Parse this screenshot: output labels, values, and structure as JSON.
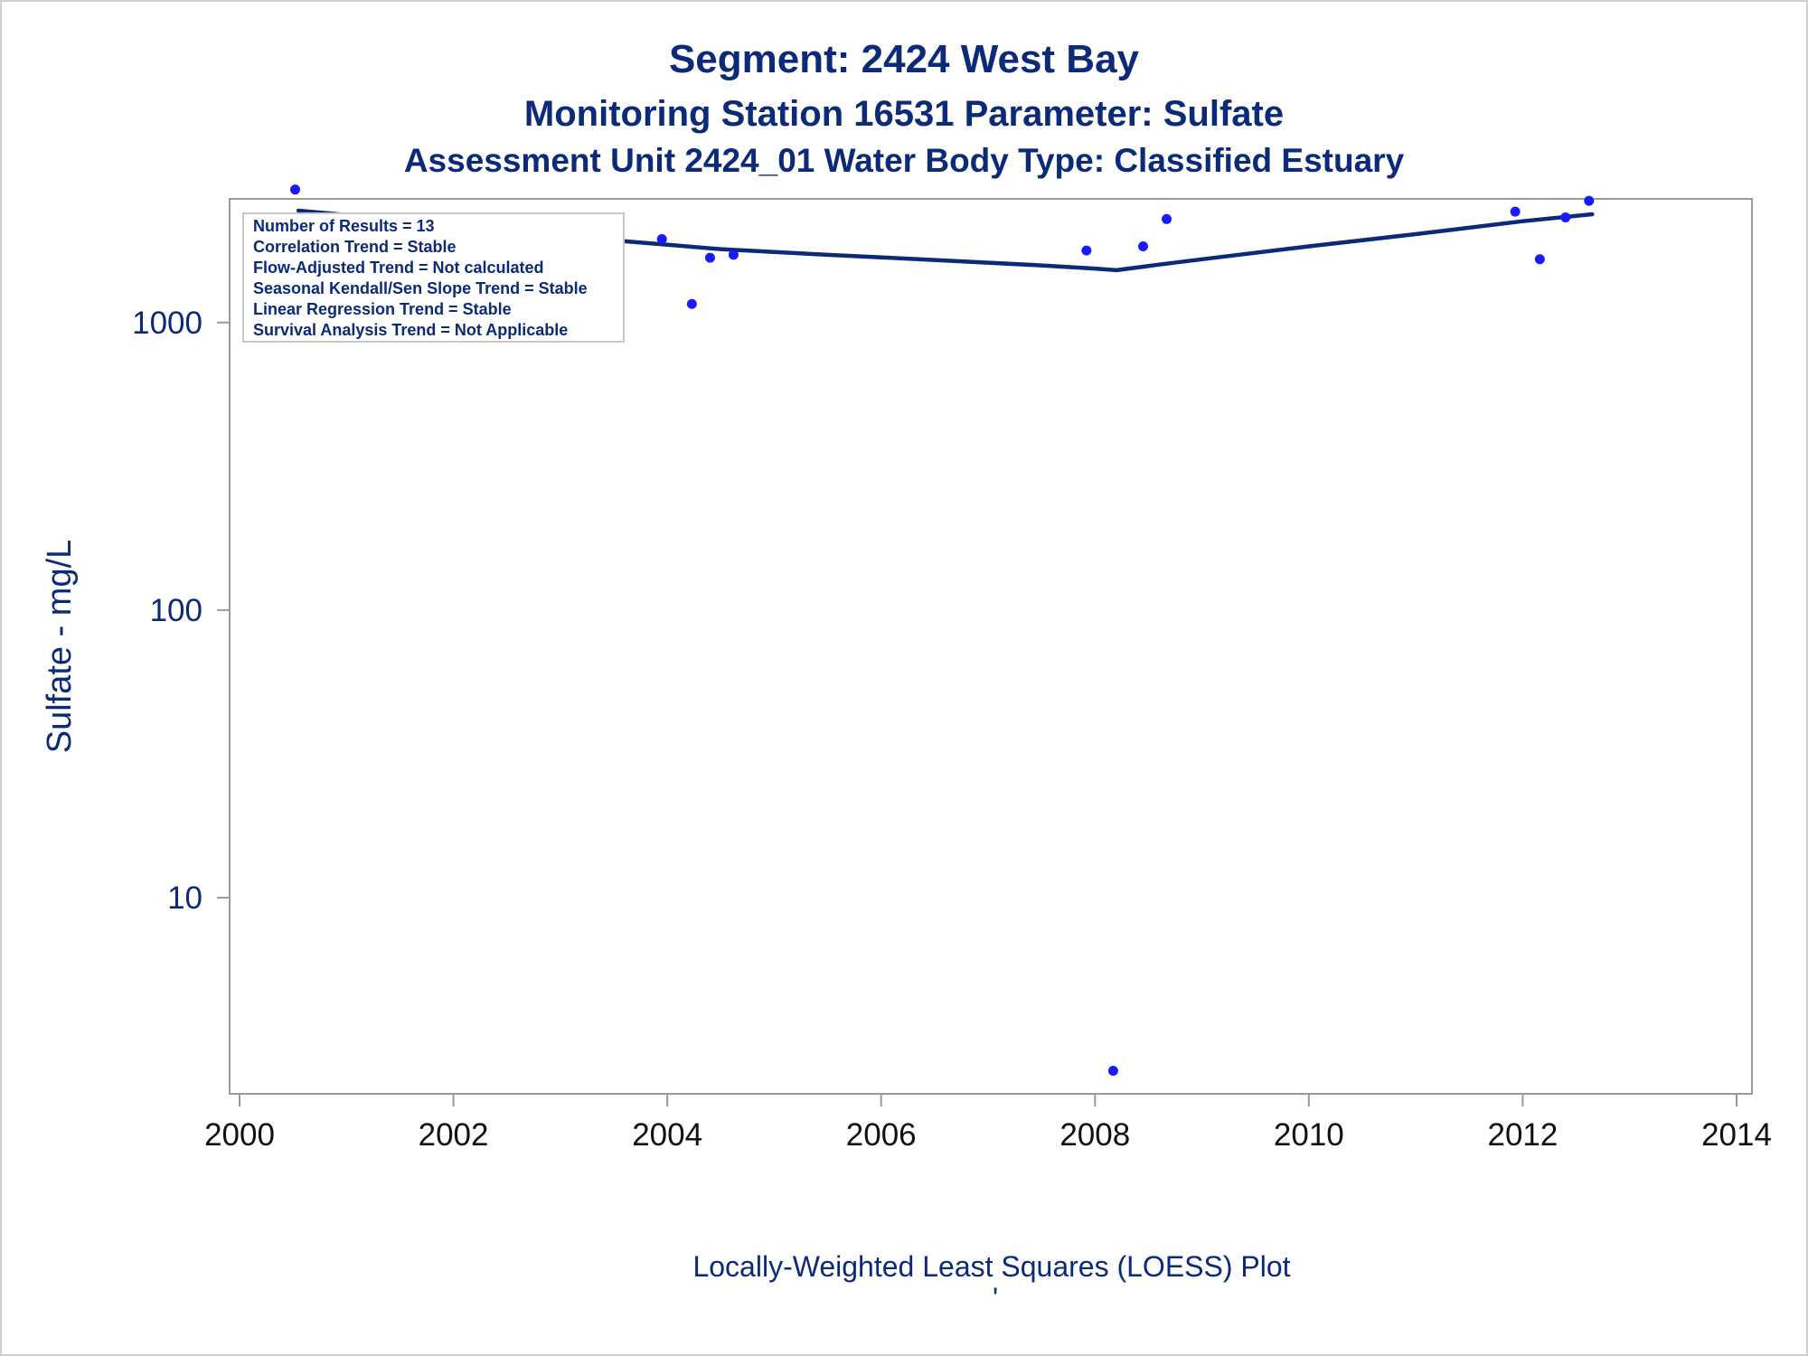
{
  "titles": {
    "line1": "Segment: 2424  West Bay",
    "line2": "Monitoring Station 16531 Parameter: Sulfate",
    "line3": "Assessment Unit 2424_01   Water Body Type: Classified Estuary"
  },
  "footnote": "Locally-Weighted Least Squares (LOESS) Plot",
  "footnote_mark": "'",
  "colors": {
    "text": "#0b2a78",
    "points": "#1a1aff",
    "loess": "#0b2a78",
    "axis": "#9a9a9a"
  },
  "legend": [
    "Number of Results = 13",
    "Correlation Trend = Stable",
    "Flow-Adjusted Trend = Not calculated",
    "Seasonal Kendall/Sen Slope Trend = Stable",
    "Linear Regression Trend = Stable",
    "Survival Analysis Trend = Not Applicable"
  ],
  "chart_data": {
    "type": "scatter",
    "ylabel": "Sulfate - mg/L",
    "xlabel": "",
    "y_scale": "log",
    "xlim": [
      2000,
      2014
    ],
    "ylim": [
      2.3,
      3000
    ],
    "x_ticks": [
      2000,
      2002,
      2004,
      2006,
      2008,
      2010,
      2012,
      2014
    ],
    "y_ticks": [
      10,
      100,
      1000
    ],
    "grid": false,
    "points": {
      "x": [
        2000.52,
        2003.95,
        2004.23,
        2004.4,
        2004.62,
        2007.92,
        2008.17,
        2008.45,
        2008.67,
        2011.93,
        2012.16,
        2012.4,
        2012.62
      ],
      "y": [
        2900,
        1950,
        1160,
        1680,
        1720,
        1780,
        2.5,
        1840,
        2290,
        2430,
        1660,
        2320,
        2650
      ]
    },
    "loess": {
      "x": [
        2000.55,
        2001.5,
        2002.5,
        2003.5,
        2004.5,
        2005.5,
        2006.5,
        2007.5,
        2008.0,
        2008.2,
        2008.6,
        2009.0,
        2010.0,
        2011.0,
        2012.0,
        2012.65
      ],
      "y": [
        2450,
        2280,
        2100,
        1930,
        1800,
        1720,
        1650,
        1580,
        1540,
        1520,
        1590,
        1660,
        1840,
        2030,
        2250,
        2380
      ]
    }
  }
}
